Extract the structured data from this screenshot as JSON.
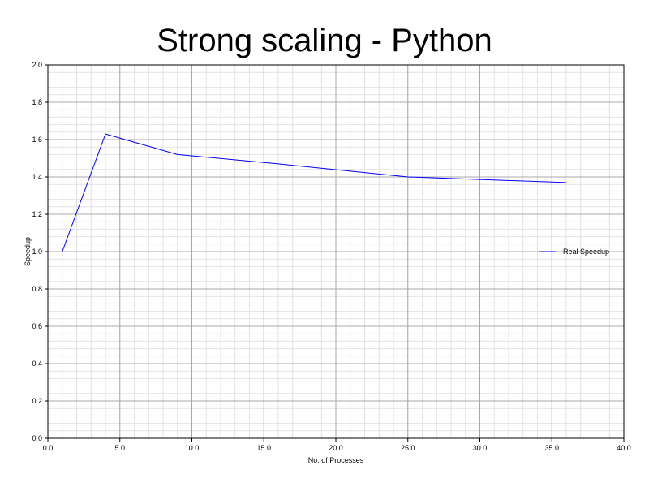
{
  "chart_data": {
    "type": "line",
    "title": "Strong scaling - Python",
    "xlabel": "No. of Processes",
    "ylabel": "Speedup",
    "xlim": [
      0,
      40
    ],
    "ylim": [
      0,
      2
    ],
    "x_ticks": [
      "0.0",
      "5.0",
      "10.0",
      "15.0",
      "20.0",
      "25.0",
      "30.0",
      "35.0",
      "40.0"
    ],
    "y_ticks": [
      "0.0",
      "0.2",
      "0.4",
      "0.6",
      "0.8",
      "1.0",
      "1.2",
      "1.4",
      "1.6",
      "1.8",
      "2.0"
    ],
    "grid": true,
    "legend_position": "right",
    "series": [
      {
        "name": "Real Speedup",
        "color": "#0000ff",
        "x": [
          1,
          4,
          9,
          16,
          25,
          36
        ],
        "y": [
          1.0,
          1.63,
          1.52,
          1.47,
          1.4,
          1.37
        ]
      }
    ]
  }
}
